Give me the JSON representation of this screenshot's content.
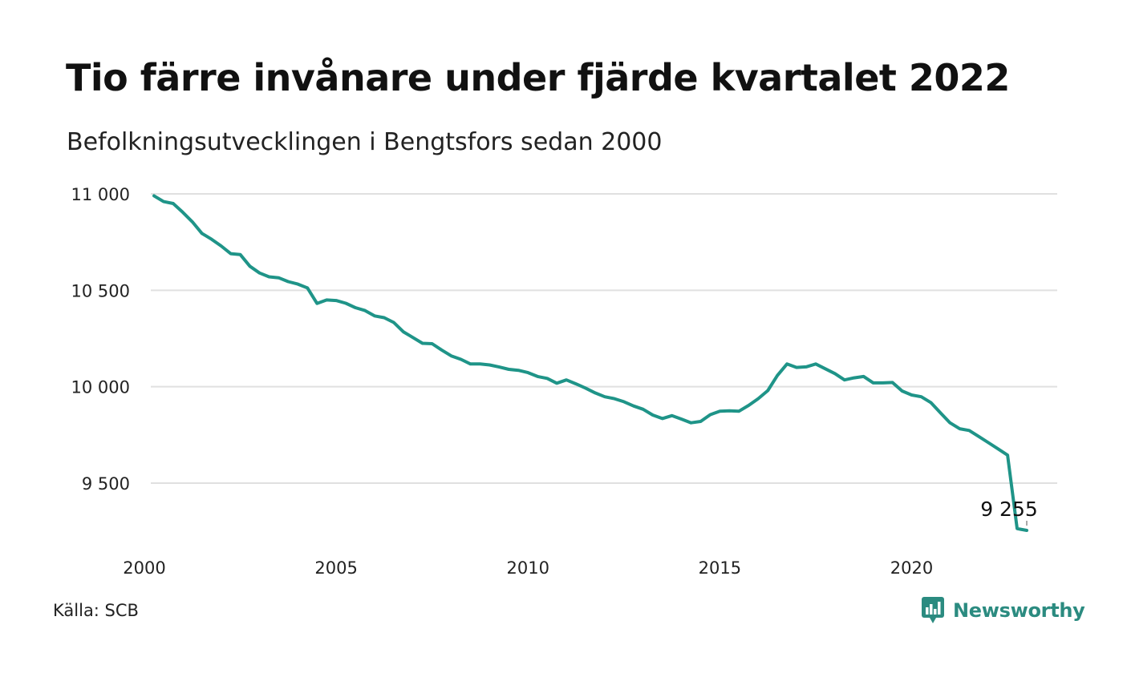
{
  "title": "Tio färre invånare under fjärde kvartalet 2022",
  "subtitle": "Befolkningsutvecklingen i Bengtsfors sedan 2000",
  "source": "Källa: SCB",
  "brand": {
    "name": "Newsworthy",
    "icon": "newsworthy-logo-icon",
    "color": "#2b8b80"
  },
  "colors": {
    "line": "#1f9488",
    "grid": "#e0e0e0"
  },
  "chart_data": {
    "type": "line",
    "title": "Tio färre invånare under fjärde kvartalet 2022",
    "subtitle": "Befolkningsutvecklingen i Bengtsfors sedan 2000",
    "xlabel": "",
    "ylabel": "",
    "grid": true,
    "xlim": [
      2000.0,
      2023.0
    ],
    "ylim": [
      9250,
      11000
    ],
    "x_ticks": [
      2000,
      2005,
      2010,
      2015,
      2020
    ],
    "x_tick_labels": [
      "2000",
      "2005",
      "2010",
      "2015",
      "2020"
    ],
    "y_ticks": [
      9500,
      10000,
      10500,
      11000
    ],
    "y_tick_labels": [
      "9 500",
      "10 000",
      "10 500",
      "11 000"
    ],
    "end_label": "9 255",
    "series": [
      {
        "x": [
          2000.25,
          2000.5,
          2000.75,
          2001.0,
          2001.25,
          2001.5,
          2001.75,
          2002.0,
          2002.25,
          2002.5,
          2002.75,
          2003.0,
          2003.25,
          2003.5,
          2003.75,
          2004.0,
          2004.25,
          2004.5,
          2004.75,
          2005.0,
          2005.25,
          2005.5,
          2005.75,
          2006.0,
          2006.25,
          2006.5,
          2006.75,
          2007.0,
          2007.25,
          2007.5,
          2007.75,
          2008.0,
          2008.25,
          2008.5,
          2008.75,
          2009.0,
          2009.25,
          2009.5,
          2009.75,
          2010.0,
          2010.25,
          2010.5,
          2010.75,
          2011.0,
          2011.25,
          2011.5,
          2011.75,
          2012.0,
          2012.25,
          2012.5,
          2012.75,
          2013.0,
          2013.25,
          2013.5,
          2013.75,
          2014.0,
          2014.25,
          2014.5,
          2014.75,
          2015.0,
          2015.25,
          2015.5,
          2015.75,
          2016.0,
          2016.25,
          2016.5,
          2016.75,
          2017.0,
          2017.25,
          2017.5,
          2017.75,
          2018.0,
          2018.25,
          2018.5,
          2018.75,
          2019.0,
          2019.25,
          2019.5,
          2019.75,
          2020.0,
          2020.25,
          2020.5,
          2020.75,
          2021.0,
          2021.25,
          2021.5,
          2021.75,
          2022.0,
          2022.25,
          2022.5,
          2022.75,
          2023.0
        ],
        "values": [
          10990,
          10960,
          10950,
          10905,
          10855,
          10795,
          10765,
          10730,
          10690,
          10685,
          10625,
          10590,
          10570,
          10565,
          10545,
          10532,
          10512,
          10432,
          10450,
          10447,
          10433,
          10410,
          10395,
          10367,
          10358,
          10333,
          10285,
          10255,
          10225,
          10223,
          10190,
          10160,
          10142,
          10118,
          10118,
          10113,
          10102,
          10090,
          10085,
          10073,
          10053,
          10043,
          10018,
          10035,
          10015,
          9993,
          9968,
          9948,
          9938,
          9922,
          9900,
          9883,
          9853,
          9835,
          9850,
          9832,
          9813,
          9820,
          9855,
          9873,
          9875,
          9873,
          9903,
          9938,
          9980,
          10058,
          10118,
          10100,
          10103,
          10118,
          10093,
          10068,
          10035,
          10046,
          10053,
          10020,
          10020,
          10022,
          9978,
          9957,
          9948,
          9918,
          9865,
          9813,
          9782,
          9773,
          9742,
          9710,
          9678,
          9645,
          9264,
          9255
        ]
      }
    ]
  }
}
